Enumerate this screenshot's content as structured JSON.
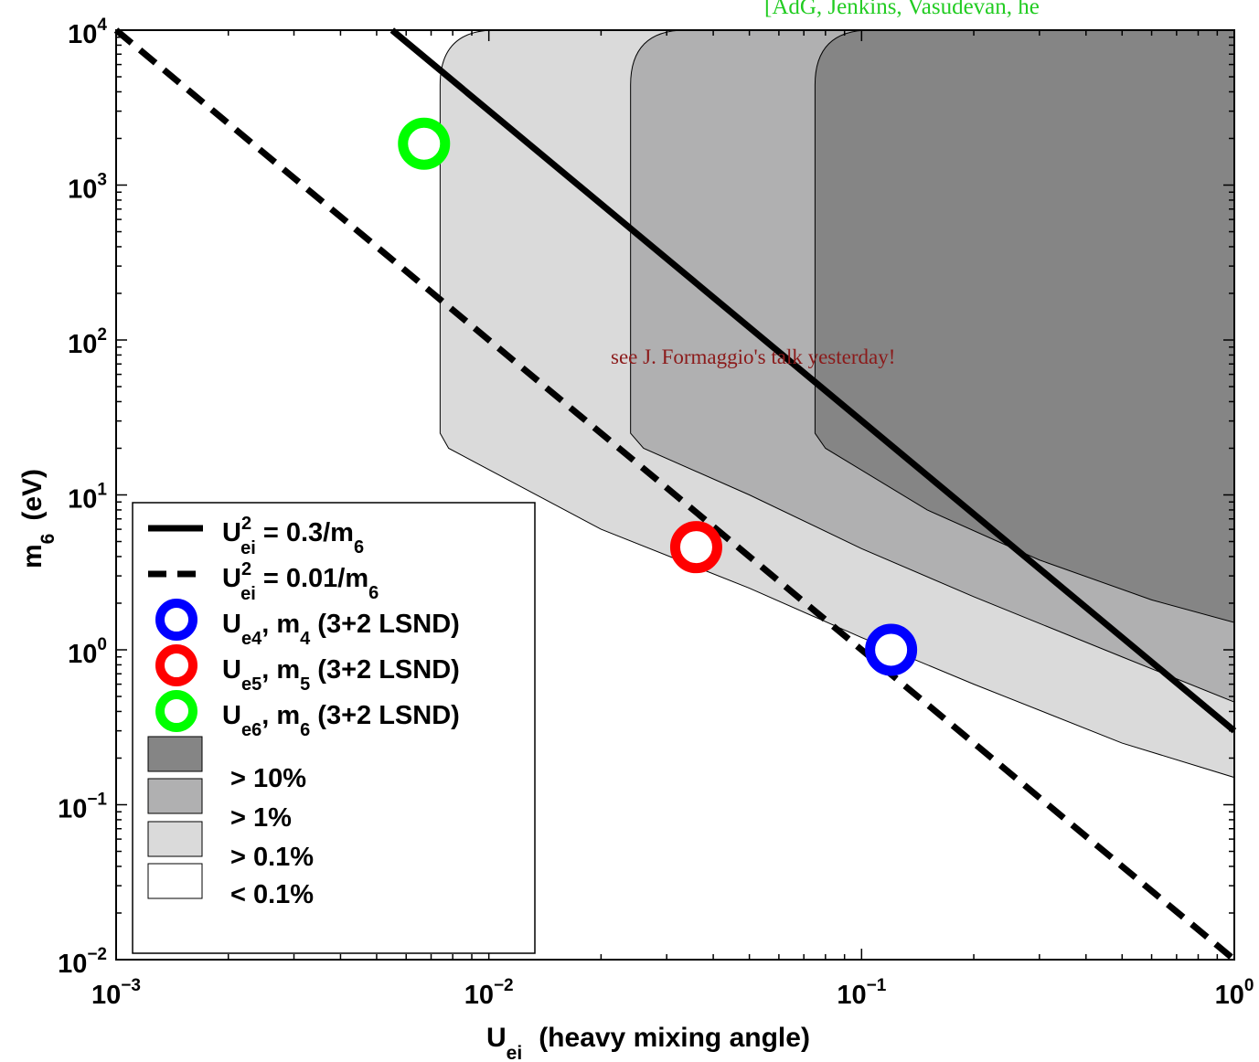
{
  "chart_data": {
    "type": "line",
    "title": "",
    "citation": "[AdG, Jenkins, Vasudevan, he",
    "annotation": "see J. Formaggio's talk yesterday!",
    "xlabel": {
      "main": "U",
      "sub": "ei",
      "rest": "(heavy mixing angle)"
    },
    "ylabel": {
      "main": "m",
      "sub": "6",
      "rest": "(eV)"
    },
    "xscale": "log",
    "yscale": "log",
    "xlim": [
      0.001,
      1
    ],
    "ylim": [
      0.01,
      10000
    ],
    "xticks": [
      {
        "value": 0.001,
        "base": "10",
        "exp": "−3"
      },
      {
        "value": 0.01,
        "base": "10",
        "exp": "−2"
      },
      {
        "value": 0.1,
        "base": "10",
        "exp": "−1"
      },
      {
        "value": 1,
        "base": "10",
        "exp": "0"
      }
    ],
    "yticks": [
      {
        "value": 0.01,
        "base": "10",
        "exp": "−2"
      },
      {
        "value": 0.1,
        "base": "10",
        "exp": "−1"
      },
      {
        "value": 1,
        "base": "10",
        "exp": "0"
      },
      {
        "value": 10,
        "base": "10",
        "exp": "1"
      },
      {
        "value": 100,
        "base": "10",
        "exp": "2"
      },
      {
        "value": 1000,
        "base": "10",
        "exp": "3"
      },
      {
        "value": 10000,
        "base": "10",
        "exp": "4"
      }
    ],
    "grid": false,
    "legend_position": "bottom-left",
    "lines": [
      {
        "id": "solid",
        "style": "solid",
        "color": "#000000",
        "legend": {
          "pre": "U",
          "sup": "2",
          "sub": "ei",
          "mid": " = 0.3/m",
          "sub2": "6",
          "post": ""
        },
        "x": [
          0.0055,
          1
        ],
        "y": [
          10000,
          0.3
        ]
      },
      {
        "id": "dashed",
        "style": "dashed",
        "color": "#000000",
        "legend": {
          "pre": "U",
          "sup": "2",
          "sub": "ei",
          "mid": " = 0.01/m",
          "sub2": "6",
          "post": ""
        },
        "x": [
          0.001,
          1
        ],
        "y": [
          10000,
          0.01
        ]
      }
    ],
    "points": [
      {
        "id": "ue4",
        "color": "#0000ff",
        "x": 0.12,
        "y": 1.0,
        "legend": {
          "pre": "U",
          "sub": "e4",
          "mid": ", m",
          "sub2": "4",
          "post": " (3+2 LSND)"
        }
      },
      {
        "id": "ue5",
        "color": "#ff0000",
        "x": 0.036,
        "y": 4.6,
        "legend": {
          "pre": "U",
          "sub": "e5",
          "mid": ", m",
          "sub2": "5",
          "post": " (3+2 LSND)"
        }
      },
      {
        "id": "ue6",
        "color": "#00ff00",
        "x": 0.0067,
        "y": 1850,
        "legend": {
          "pre": "U",
          "sub": "e6",
          "mid": ", m",
          "sub2": "6",
          "post": " (3+2 LSND)"
        }
      }
    ],
    "regions": [
      {
        "id": "r01",
        "label": "> 0.1%",
        "color": "#dadada",
        "boundary": {
          "x": [
            0.0074,
            0.0074,
            0.0078,
            0.02,
            0.05,
            0.1,
            0.2,
            0.5,
            1.0
          ],
          "y": [
            10000,
            25,
            20,
            6,
            2.5,
            1.2,
            0.6,
            0.25,
            0.15
          ]
        }
      },
      {
        "id": "r1",
        "label": "> 1%",
        "color": "#b0b0b1",
        "boundary": {
          "x": [
            0.024,
            0.024,
            0.026,
            0.05,
            0.1,
            0.2,
            0.5,
            1.0
          ],
          "y": [
            10000,
            25,
            20,
            10,
            4.5,
            2.2,
            0.9,
            0.46
          ]
        }
      },
      {
        "id": "r10",
        "label": "> 10%",
        "color": "#858585",
        "boundary": {
          "x": [
            0.075,
            0.075,
            0.08,
            0.15,
            0.3,
            0.6,
            1.0
          ],
          "y": [
            10000,
            25,
            20,
            8,
            3.8,
            2.1,
            1.5
          ]
        }
      }
    ],
    "region_legend": [
      {
        "label": "> 10%",
        "color": "#858585"
      },
      {
        "label": "> 1%",
        "color": "#b0b0b1"
      },
      {
        "label": "> 0.1%",
        "color": "#dadada"
      },
      {
        "label": "< 0.1%",
        "color": "#ffffff"
      }
    ]
  }
}
